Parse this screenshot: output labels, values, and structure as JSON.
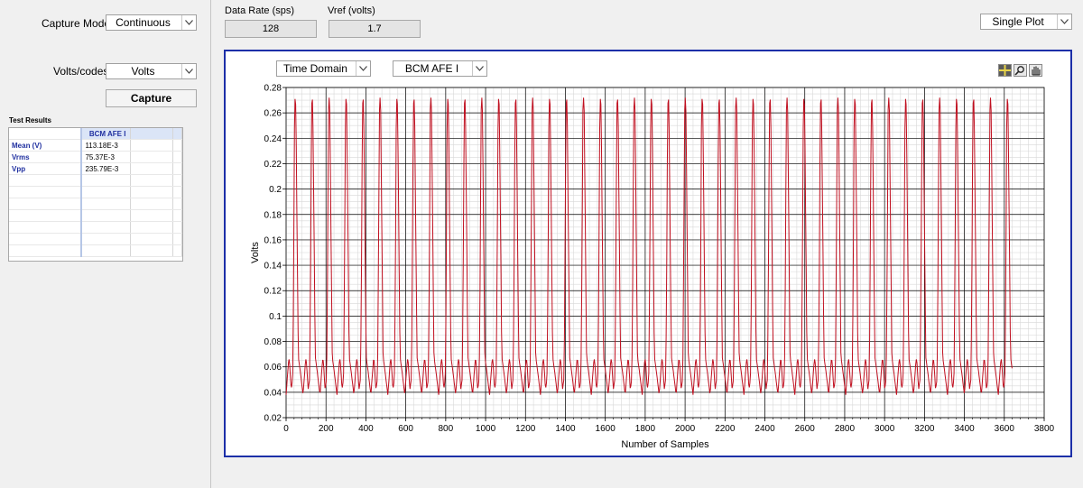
{
  "controls": {
    "capture_mode_label": "Capture Mode",
    "capture_mode_value": "Continuous",
    "volts_codes_label": "Volts/codes",
    "volts_codes_value": "Volts",
    "capture_button": "Capture",
    "data_rate_label": "Data Rate (sps)",
    "data_rate_value": "128",
    "vref_label": "Vref (volts)",
    "vref_value": "1.7",
    "plot_mode_value": "Single Plot"
  },
  "test_results": {
    "title": "Test Results",
    "column_header": "BCM AFE I",
    "rows": [
      {
        "label": "Mean (V)",
        "value": "113.18E-3"
      },
      {
        "label": "Vrms",
        "value": "75.37E-3"
      },
      {
        "label": "Vpp",
        "value": "235.79E-3"
      }
    ]
  },
  "graph": {
    "domain_value": "Time Domain",
    "channel_value": "BCM AFE I",
    "tools": [
      "cursor-icon",
      "zoom-icon",
      "pan-hand-icon"
    ]
  },
  "chart_data": {
    "type": "line",
    "title": "",
    "xlabel": "Number of Samples",
    "ylabel": "Volts",
    "xlim": [
      0,
      3800
    ],
    "ylim": [
      0.02,
      0.28
    ],
    "x_ticks": [
      0,
      200,
      400,
      600,
      800,
      1000,
      1200,
      1400,
      1600,
      1800,
      2000,
      2200,
      2400,
      2600,
      2800,
      3000,
      3200,
      3400,
      3600,
      3800
    ],
    "y_ticks": [
      "0.02",
      "0.04",
      "0.06",
      "0.08",
      "0.1",
      "0.12",
      "0.14",
      "0.16",
      "0.18",
      "0.2",
      "0.22",
      "0.24",
      "0.26",
      "0.28"
    ],
    "grid": true,
    "series": [
      {
        "color": "#c01020",
        "samples": 3640,
        "period_samples": 85,
        "min": 0.038,
        "max": 0.272,
        "mid_level": 0.06
      }
    ]
  }
}
